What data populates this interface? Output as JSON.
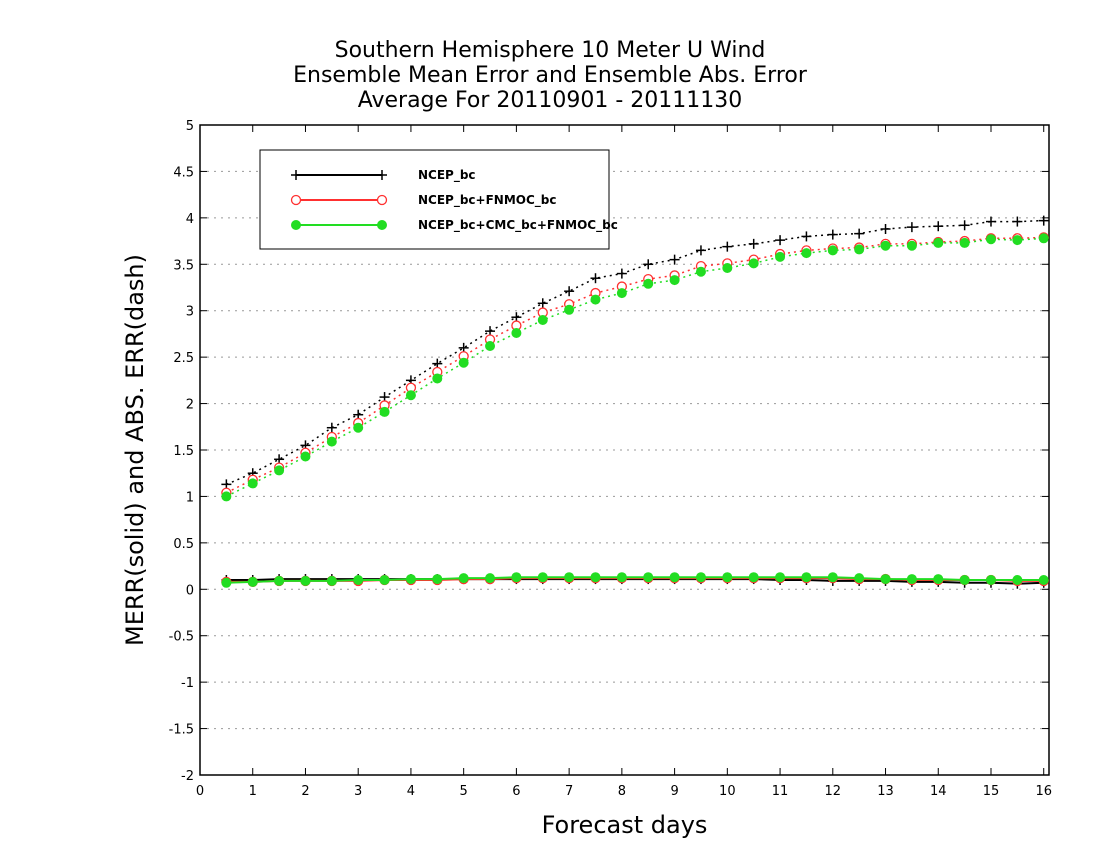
{
  "chart_data": {
    "type": "line",
    "title": [
      "Southern Hemisphere 10 Meter U Wind",
      "Ensemble Mean Error and Ensemble Abs. Error",
      "Average For 20110901 - 20111130"
    ],
    "xlabel": "Forecast days",
    "ylabel": "MERR(solid) and ABS. ERR(dash)",
    "xlim": [
      0,
      16.1
    ],
    "ylim": [
      -2,
      5
    ],
    "xticks": [
      "0",
      "1",
      "2",
      "3",
      "4",
      "5",
      "6",
      "7",
      "8",
      "9",
      "10",
      "11",
      "12",
      "13",
      "14",
      "15",
      "16"
    ],
    "yticks": [
      "5",
      "4.5",
      "4",
      "3.5",
      "3",
      "2.5",
      "2",
      "1.5",
      "1",
      "0.5",
      "0",
      "-0.5",
      "-1",
      "-1.5",
      "-2"
    ],
    "ytick_values": [
      5,
      4.5,
      4,
      3.5,
      3,
      2.5,
      2,
      1.5,
      1,
      0.5,
      0,
      -0.5,
      -1,
      -1.5,
      -2
    ],
    "grid": "horizontal dotted",
    "legend_placement": "top-left",
    "x": [
      0.5,
      1,
      1.5,
      2,
      2.5,
      3,
      3.5,
      4,
      4.5,
      5,
      5.5,
      6,
      6.5,
      7,
      7.5,
      8,
      8.5,
      9,
      9.5,
      10,
      10.5,
      11,
      11.5,
      12,
      12.5,
      13,
      13.5,
      14,
      14.5,
      15,
      15.5,
      16
    ],
    "series": [
      {
        "name": "NCEP_bc",
        "color": "#000000",
        "marker": "plus",
        "abs_err": [
          1.13,
          1.25,
          1.4,
          1.55,
          1.74,
          1.88,
          2.07,
          2.25,
          2.43,
          2.6,
          2.78,
          2.93,
          3.08,
          3.21,
          3.35,
          3.4,
          3.5,
          3.55,
          3.65,
          3.69,
          3.72,
          3.76,
          3.8,
          3.82,
          3.83,
          3.88,
          3.9,
          3.91,
          3.92,
          3.96,
          3.96,
          3.97
        ],
        "mean_err": [
          0.1,
          0.1,
          0.11,
          0.11,
          0.11,
          0.11,
          0.11,
          0.11,
          0.11,
          0.11,
          0.11,
          0.11,
          0.11,
          0.11,
          0.11,
          0.11,
          0.11,
          0.11,
          0.11,
          0.11,
          0.11,
          0.1,
          0.1,
          0.09,
          0.09,
          0.09,
          0.08,
          0.08,
          0.07,
          0.07,
          0.06,
          0.07
        ]
      },
      {
        "name": "NCEP_bc+FNMOC_bc",
        "color": "#ff3030",
        "marker": "open-circle",
        "abs_err": [
          1.04,
          1.18,
          1.31,
          1.47,
          1.64,
          1.79,
          1.98,
          2.17,
          2.34,
          2.51,
          2.69,
          2.84,
          2.98,
          3.07,
          3.19,
          3.26,
          3.34,
          3.38,
          3.48,
          3.51,
          3.55,
          3.61,
          3.65,
          3.67,
          3.68,
          3.72,
          3.72,
          3.74,
          3.75,
          3.78,
          3.78,
          3.79
        ],
        "mean_err": [
          0.08,
          0.08,
          0.09,
          0.09,
          0.09,
          0.09,
          0.1,
          0.1,
          0.1,
          0.11,
          0.11,
          0.12,
          0.12,
          0.12,
          0.12,
          0.12,
          0.12,
          0.12,
          0.12,
          0.12,
          0.12,
          0.12,
          0.12,
          0.12,
          0.11,
          0.11,
          0.1,
          0.1,
          0.1,
          0.1,
          0.09,
          0.09
        ]
      },
      {
        "name": "NCEP_bc+CMC_bc+FNMOC_bc",
        "color": "#22dd22",
        "marker": "filled-circle",
        "abs_err": [
          1.0,
          1.14,
          1.28,
          1.43,
          1.59,
          1.74,
          1.91,
          2.09,
          2.27,
          2.44,
          2.62,
          2.76,
          2.9,
          3.01,
          3.12,
          3.19,
          3.29,
          3.33,
          3.42,
          3.46,
          3.51,
          3.58,
          3.62,
          3.65,
          3.66,
          3.7,
          3.7,
          3.73,
          3.73,
          3.77,
          3.76,
          3.78
        ],
        "mean_err": [
          0.07,
          0.08,
          0.09,
          0.09,
          0.09,
          0.1,
          0.1,
          0.11,
          0.11,
          0.12,
          0.12,
          0.13,
          0.13,
          0.13,
          0.13,
          0.13,
          0.13,
          0.13,
          0.13,
          0.13,
          0.13,
          0.13,
          0.13,
          0.13,
          0.12,
          0.11,
          0.11,
          0.11,
          0.1,
          0.1,
          0.1,
          0.1
        ]
      }
    ]
  }
}
